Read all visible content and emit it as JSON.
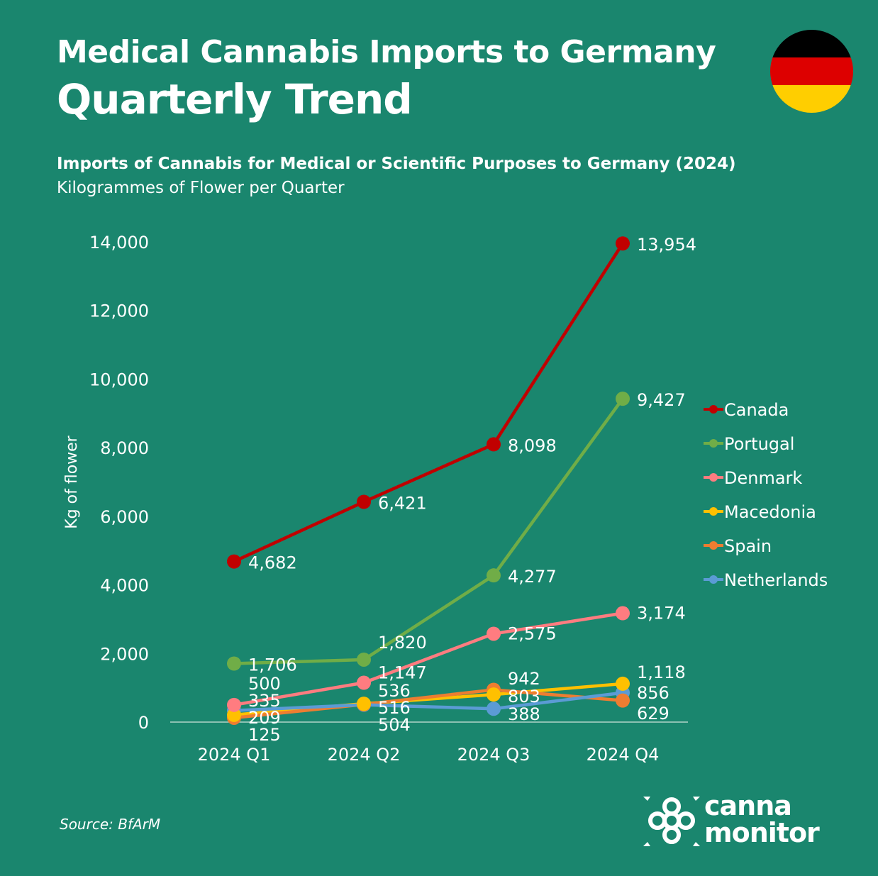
{
  "header": {
    "title": "Medical Cannabis Imports to Germany",
    "subtitle": "Quarterly Trend",
    "chart_title": "Imports of Cannabis for Medical or Scientific Purposes to Germany (2024)",
    "chart_subtitle": "Kilogrammes of Flower per Quarter",
    "flag_icon": "germany-flag",
    "flag_colors": [
      "#000000",
      "#dd0000",
      "#ffce00"
    ]
  },
  "footer": {
    "source": "Source: BfArM",
    "logo_line1": "canna",
    "logo_line2": "monitor"
  },
  "chart_data": {
    "type": "line",
    "title": "Imports of Cannabis for Medical or Scientific Purposes to Germany (2024)",
    "ylabel": "Kg of flower",
    "xlabel": "",
    "categories": [
      "2024 Q1",
      "2024 Q2",
      "2024 Q3",
      "2024 Q4"
    ],
    "ylim": [
      0,
      14000
    ],
    "yticks": [
      0,
      2000,
      4000,
      6000,
      8000,
      10000,
      12000,
      14000
    ],
    "ytick_labels": [
      "0",
      "2,000",
      "4,000",
      "6,000",
      "8,000",
      "10,000",
      "12,000",
      "14,000"
    ],
    "grid": false,
    "legend": "right",
    "series": [
      {
        "name": "Canada",
        "color": "#c00000",
        "values": [
          4682,
          6421,
          8098,
          13954
        ],
        "labels": [
          "4,682",
          "6,421",
          "8,098",
          "13,954"
        ]
      },
      {
        "name": "Portugal",
        "color": "#70ad47",
        "values": [
          1706,
          1820,
          4277,
          9427
        ],
        "labels": [
          "1,706",
          "1,820",
          "4,277",
          "9,427"
        ]
      },
      {
        "name": "Denmark",
        "color": "#ff7c80",
        "values": [
          500,
          1147,
          2575,
          3174
        ],
        "labels": [
          "500",
          "1,147",
          "2,575",
          "3,174"
        ]
      },
      {
        "name": "Macedonia",
        "color": "#ffc000",
        "values": [
          209,
          536,
          803,
          1118
        ],
        "labels": [
          "209",
          "536",
          "803",
          "1,118"
        ]
      },
      {
        "name": "Spain",
        "color": "#ed7d31",
        "values": [
          125,
          516,
          942,
          629
        ],
        "labels": [
          "125",
          "516",
          "942",
          "629"
        ]
      },
      {
        "name": "Netherlands",
        "color": "#5b9bd5",
        "values": [
          335,
          504,
          388,
          856
        ],
        "labels": [
          "335",
          "504",
          "388",
          "856"
        ]
      }
    ]
  }
}
